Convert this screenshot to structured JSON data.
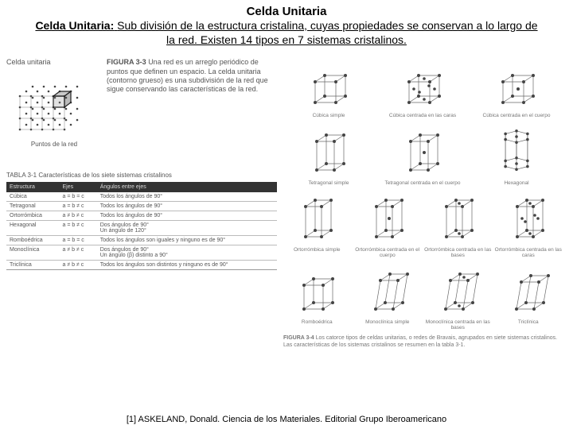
{
  "title": "Celda Unitaria",
  "subtitle_prefix": "Celda Unitaria:",
  "subtitle_body": "Sub división de la estructura cristalina, cuyas propiedades se conservan a lo largo de la red. Existen 14 tipos en 7 sistemas cristalinos.",
  "left": {
    "lattice_label": "Celda unitaria",
    "lattice_caption": "Puntos de la red",
    "fig33_label": "FIGURA 3-3",
    "fig33_text": "Una red es un arreglo periódico de puntos que definen un espacio. La celda unitaria (contorno grueso) es una subdivisión de la red que sigue conservando las características de la red.",
    "table_title": "TABLA 3-1  Características de los siete sistemas cristalinos",
    "headers": [
      "Estructura",
      "Ejes",
      "Ángulos entre ejes"
    ],
    "rows": [
      {
        "s": "Cúbica",
        "e": "a = b = c",
        "a": "Todos los ángulos de 90°"
      },
      {
        "s": "Tetragonal",
        "e": "a = b ≠ c",
        "a": "Todos los ángulos de 90°"
      },
      {
        "s": "Ortorrómbica",
        "e": "a ≠ b ≠ c",
        "a": "Todos los ángulos de 90°"
      },
      {
        "s": "Hexagonal",
        "e": "a = b ≠ c",
        "a": "Dos ángulos de 90°\nUn ángulo de 120°"
      },
      {
        "s": "Romboédrica",
        "e": "a = b = c",
        "a": "Todos los ángulos son iguales y ninguno es de 90°"
      },
      {
        "s": "Monoclínica",
        "e": "a ≠ b ≠ c",
        "a": "Dos ángulos de 90°\nUn ángulo (β) distinto a 90°"
      },
      {
        "s": "Triclínica",
        "e": "a ≠ b ≠ c",
        "a": "Todos los ángulos son distintos y ninguno es de 90°"
      }
    ]
  },
  "right": {
    "row1": [
      {
        "label": "Cúbica simple",
        "type": "cube",
        "extra": "none"
      },
      {
        "label": "Cúbica centrada en las caras",
        "type": "cube",
        "extra": "fcc"
      },
      {
        "label": "Cúbica centrada en el cuerpo",
        "type": "cube",
        "extra": "bcc"
      }
    ],
    "row2": [
      {
        "label": "Tetragonal simple",
        "type": "tet",
        "extra": "none"
      },
      {
        "label": "Tetragonal centrada en el cuerpo",
        "type": "tet",
        "extra": "bcc"
      },
      {
        "label": "Hexagonal",
        "type": "hex",
        "extra": "none"
      }
    ],
    "row3": [
      {
        "label": "Ortorrómbica simple",
        "type": "orth",
        "extra": "none"
      },
      {
        "label": "Ortorrómbica centrada en el cuerpo",
        "type": "orth",
        "extra": "bcc"
      },
      {
        "label": "Ortorrómbica centrada en las bases",
        "type": "orth",
        "extra": "base"
      },
      {
        "label": "Ortorrómbica centrada en las caras",
        "type": "orth",
        "extra": "fcc"
      }
    ],
    "row4": [
      {
        "label": "Romboédrica",
        "type": "rhom",
        "extra": "none"
      },
      {
        "label": "Monoclínica simple",
        "type": "mono",
        "extra": "none"
      },
      {
        "label": "Monoclínica centrada en las bases",
        "type": "mono",
        "extra": "base"
      },
      {
        "label": "Triclínica",
        "type": "tric",
        "extra": "none"
      }
    ],
    "fig34_label": "FIGURA 3-4",
    "fig34_text": "Los catorce tipos de celdas unitarias, o redes de Bravais, agrupados en siete sistemas cristalinos. Las características de los sistemas cristalinos se resumen en la tabla 3-1."
  },
  "citation": "[1] ASKELAND, Donald. Ciencia de los Materiales. Editorial Grupo Iberoamericano",
  "colors": {
    "stroke": "#666666",
    "node": "#444444",
    "hbar": "#333333"
  }
}
